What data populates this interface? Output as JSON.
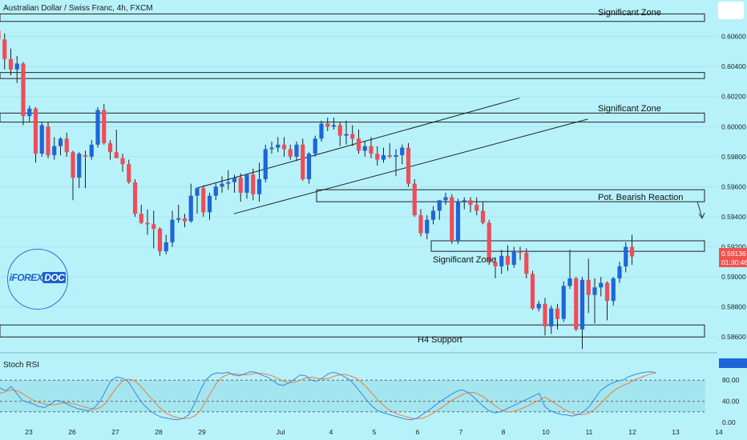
{
  "header": {
    "title": "Australian Dollar / Swiss Franc, 4h, FXCM"
  },
  "logo": {
    "prefix": "iFOREX",
    "suffix": "DOC"
  },
  "rsi": {
    "label": "Stoch RSI",
    "levels": [
      "80.00",
      "40.00",
      "0.00"
    ]
  },
  "price_badge": {
    "price": "0.59136",
    "countdown": "01:30:46",
    "color": "#ef5350"
  },
  "colors": {
    "bull": "#1e66d8",
    "bear": "#ef4d5a",
    "background": "#b7f2fb",
    "k_line": "#3a86e0",
    "d_line": "#f07b3b"
  },
  "annotations": {
    "zone1": "Significant Zone",
    "zone2": "Significant Zone",
    "zone3": "Pot. Bearish Reaction",
    "zone4": "Significant Zone",
    "zone5": "H4 Support"
  },
  "chart_data": {
    "type": "candlestick",
    "title": "Australian Dollar / Swiss Franc, 4h, FXCM",
    "ylim": [
      0.585,
      0.608
    ],
    "y_ticks": [
      "0.60600",
      "0.60400",
      "0.60200",
      "0.60000",
      "0.59800",
      "0.59600",
      "0.59400",
      "0.59200",
      "0.59000",
      "0.58800",
      "0.58600"
    ],
    "x_ticks": [
      "23",
      "26",
      "27",
      "28",
      "29",
      "Jul",
      "4",
      "5",
      "6",
      "7",
      "8",
      "10",
      "11",
      "12",
      "13",
      "14"
    ],
    "candles": [
      [
        0.6064,
        0.6067,
        0.6052,
        0.6058
      ],
      [
        0.6058,
        0.6062,
        0.6038,
        0.6045
      ],
      [
        0.6045,
        0.6052,
        0.6034,
        0.6038
      ],
      [
        0.6038,
        0.6047,
        0.6029,
        0.6042
      ],
      [
        0.6042,
        0.6043,
        0.6001,
        0.6007
      ],
      [
        0.6007,
        0.6014,
        0.6003,
        0.6012
      ],
      [
        0.6012,
        0.6013,
        0.5976,
        0.5982
      ],
      [
        0.5982,
        0.6003,
        0.598,
        0.6001
      ],
      [
        0.6,
        0.6003,
        0.5979,
        0.5981
      ],
      [
        0.5981,
        0.5993,
        0.5978,
        0.5987
      ],
      [
        0.5987,
        0.5993,
        0.5981,
        0.5992
      ],
      [
        0.5992,
        0.5996,
        0.598,
        0.5983
      ],
      [
        0.5983,
        0.5984,
        0.5951,
        0.5966
      ],
      [
        0.5966,
        0.5983,
        0.5959,
        0.5982
      ],
      [
        0.5981,
        0.5984,
        0.5959,
        0.598
      ],
      [
        0.598,
        0.5991,
        0.5978,
        0.5988
      ],
      [
        0.5988,
        0.6013,
        0.5986,
        0.6011
      ],
      [
        0.6011,
        0.6015,
        0.5988,
        0.5989
      ],
      [
        0.5989,
        0.5991,
        0.5978,
        0.5983
      ],
      [
        0.5983,
        0.5998,
        0.5981,
        0.5979
      ],
      [
        0.5979,
        0.5982,
        0.597,
        0.5975
      ],
      [
        0.5975,
        0.5978,
        0.5962,
        0.5963
      ],
      [
        0.5963,
        0.5965,
        0.594,
        0.5942
      ],
      [
        0.5942,
        0.5948,
        0.5935,
        0.5936
      ],
      [
        0.5936,
        0.5945,
        0.5928,
        0.5935
      ],
      [
        0.5935,
        0.5944,
        0.5919,
        0.5932
      ],
      [
        0.5932,
        0.5933,
        0.5914,
        0.5917
      ],
      [
        0.5917,
        0.5928,
        0.5915,
        0.5923
      ],
      [
        0.5923,
        0.5944,
        0.592,
        0.5938
      ],
      [
        0.5938,
        0.5948,
        0.5936,
        0.5939
      ],
      [
        0.5939,
        0.5942,
        0.5933,
        0.5937
      ],
      [
        0.5937,
        0.5962,
        0.5936,
        0.5954
      ],
      [
        0.5954,
        0.5958,
        0.5942,
        0.5959
      ],
      [
        0.5959,
        0.5961,
        0.594,
        0.5943
      ],
      [
        0.5943,
        0.5956,
        0.5938,
        0.5954
      ],
      [
        0.5954,
        0.5962,
        0.5951,
        0.596
      ],
      [
        0.596,
        0.5967,
        0.5956,
        0.5962
      ],
      [
        0.5962,
        0.5971,
        0.5958,
        0.5963
      ],
      [
        0.5963,
        0.5968,
        0.5956,
        0.5966
      ],
      [
        0.5966,
        0.5969,
        0.595,
        0.5956
      ],
      [
        0.5956,
        0.5966,
        0.5952,
        0.5968
      ],
      [
        0.5968,
        0.5972,
        0.5951,
        0.5955
      ],
      [
        0.5955,
        0.5976,
        0.595,
        0.5965
      ],
      [
        0.5965,
        0.5988,
        0.5963,
        0.5985
      ],
      [
        0.5985,
        0.599,
        0.5982,
        0.5986
      ],
      [
        0.5986,
        0.5993,
        0.5983,
        0.5988
      ],
      [
        0.5988,
        0.5993,
        0.598,
        0.5985
      ],
      [
        0.5985,
        0.5988,
        0.5978,
        0.598
      ],
      [
        0.598,
        0.599,
        0.5977,
        0.5988
      ],
      [
        0.5988,
        0.5992,
        0.5964,
        0.5965
      ],
      [
        0.5965,
        0.5983,
        0.5962,
        0.5982
      ],
      [
        0.5982,
        0.5994,
        0.598,
        0.5992
      ],
      [
        0.5992,
        0.6004,
        0.599,
        0.6002
      ],
      [
        0.6002,
        0.6006,
        0.5997,
        0.6
      ],
      [
        0.6,
        0.6006,
        0.5998,
        0.6001
      ],
      [
        0.6001,
        0.6003,
        0.5987,
        0.5994
      ],
      [
        0.5994,
        0.6004,
        0.5988,
        0.5995
      ],
      [
        0.5995,
        0.6001,
        0.5987,
        0.5992
      ],
      [
        0.5992,
        0.5998,
        0.5982,
        0.5984
      ],
      [
        0.5984,
        0.599,
        0.598,
        0.5987
      ],
      [
        0.5987,
        0.5993,
        0.5979,
        0.5982
      ],
      [
        0.5982,
        0.5987,
        0.5974,
        0.5978
      ],
      [
        0.5978,
        0.5986,
        0.5976,
        0.5981
      ],
      [
        0.5981,
        0.5989,
        0.5979,
        0.598
      ],
      [
        0.598,
        0.5985,
        0.5967,
        0.5981
      ],
      [
        0.5981,
        0.5988,
        0.5975,
        0.5986
      ],
      [
        0.5986,
        0.5989,
        0.596,
        0.5962
      ],
      [
        0.5962,
        0.5965,
        0.594,
        0.5941
      ],
      [
        0.5941,
        0.5945,
        0.5927,
        0.5929
      ],
      [
        0.5929,
        0.5941,
        0.5925,
        0.5938
      ],
      [
        0.5938,
        0.5947,
        0.5935,
        0.5944
      ],
      [
        0.5944,
        0.5951,
        0.5938,
        0.5951
      ],
      [
        0.5951,
        0.5956,
        0.5948,
        0.5953
      ],
      [
        0.5953,
        0.5955,
        0.5922,
        0.5924
      ],
      [
        0.5924,
        0.5952,
        0.5922,
        0.595
      ],
      [
        0.595,
        0.5953,
        0.5945,
        0.5951
      ],
      [
        0.5951,
        0.5953,
        0.5943,
        0.5948
      ],
      [
        0.5948,
        0.5953,
        0.5941,
        0.5944
      ],
      [
        0.5944,
        0.595,
        0.5935,
        0.5936
      ],
      [
        0.5936,
        0.5938,
        0.5908,
        0.591
      ],
      [
        0.591,
        0.5913,
        0.5899,
        0.5907
      ],
      [
        0.5907,
        0.5918,
        0.5902,
        0.5914
      ],
      [
        0.5914,
        0.5921,
        0.5904,
        0.5908
      ],
      [
        0.5908,
        0.592,
        0.5906,
        0.5917
      ],
      [
        0.5917,
        0.592,
        0.5911,
        0.5916
      ],
      [
        0.5916,
        0.5919,
        0.5899,
        0.5902
      ],
      [
        0.5902,
        0.5904,
        0.5878,
        0.5879
      ],
      [
        0.5879,
        0.5884,
        0.5877,
        0.5882
      ],
      [
        0.5882,
        0.5886,
        0.5861,
        0.5867
      ],
      [
        0.5867,
        0.5881,
        0.5862,
        0.5879
      ],
      [
        0.5879,
        0.5882,
        0.5865,
        0.5872
      ],
      [
        0.5872,
        0.5897,
        0.587,
        0.5894
      ],
      [
        0.5894,
        0.5918,
        0.5892,
        0.5899
      ],
      [
        0.5899,
        0.59,
        0.5864,
        0.5865
      ],
      [
        0.5865,
        0.59,
        0.5852,
        0.5898
      ],
      [
        0.5898,
        0.5912,
        0.5876,
        0.5888
      ],
      [
        0.5888,
        0.5899,
        0.5869,
        0.5893
      ],
      [
        0.5893,
        0.59,
        0.5887,
        0.5896
      ],
      [
        0.5896,
        0.5897,
        0.5871,
        0.5884
      ],
      [
        0.5884,
        0.59,
        0.5881,
        0.5899
      ],
      [
        0.5899,
        0.591,
        0.5896,
        0.5907
      ],
      [
        0.5907,
        0.5923,
        0.5903,
        0.592
      ],
      [
        0.592,
        0.5928,
        0.5908,
        0.59136
      ]
    ],
    "zones": [
      {
        "label": "Significant Zone",
        "y_top": 0.6075,
        "y_bottom": 0.607
      },
      {
        "label": "",
        "y_top": 0.6036,
        "y_bottom": 0.6032
      },
      {
        "label": "Significant Zone",
        "y_top": 0.6009,
        "y_bottom": 0.6003
      },
      {
        "label": "Pot. Bearish Reaction",
        "y_top": 0.5958,
        "y_bottom": 0.595
      },
      {
        "label": "Significant Zone",
        "y_top": 0.5924,
        "y_bottom": 0.5917
      },
      {
        "label": "H4 Support",
        "y_top": 0.5868,
        "y_bottom": 0.586
      }
    ],
    "channel_lines": [
      {
        "x1": 19,
        "y1": 0.5959,
        "x2": 71,
        "y2": 0.6019
      },
      {
        "x1": 25,
        "y1": 0.5942,
        "x2": 82,
        "y2": 0.6005
      }
    ],
    "stoch_rsi": {
      "ylim": [
        0,
        100
      ],
      "levels": [
        80,
        40,
        20
      ],
      "k": [
        65,
        60,
        68,
        55,
        42,
        38,
        35,
        30,
        28,
        34,
        42,
        40,
        35,
        30,
        26,
        24,
        22,
        28,
        40,
        60,
        80,
        86,
        84,
        78,
        62,
        45,
        32,
        22,
        15,
        10,
        8,
        6,
        5,
        8,
        15,
        35,
        60,
        80,
        90,
        94,
        93,
        95,
        90,
        88,
        92,
        96,
        95,
        90,
        86,
        80,
        72,
        70,
        75,
        82,
        90,
        88,
        80,
        78,
        84,
        92,
        95,
        92,
        86,
        80,
        68,
        55,
        42,
        30,
        22,
        18,
        15,
        12,
        9,
        6,
        5,
        8,
        15,
        22,
        30,
        38,
        45,
        52,
        58,
        62,
        58,
        50,
        40,
        30,
        22,
        18,
        20,
        25,
        30,
        35,
        40,
        45,
        50,
        55,
        30,
        22,
        18,
        15,
        14,
        12,
        15,
        20,
        30,
        45,
        60,
        68,
        74,
        78,
        80,
        86,
        90,
        93,
        95,
        96,
        94
      ],
      "d": [
        55,
        58,
        62,
        60,
        55,
        48,
        42,
        38,
        35,
        33,
        34,
        36,
        38,
        36,
        33,
        30,
        27,
        25,
        28,
        36,
        52,
        66,
        78,
        82,
        80,
        72,
        60,
        48,
        36,
        25,
        17,
        12,
        9,
        7,
        8,
        12,
        22,
        40,
        58,
        75,
        86,
        91,
        92,
        91,
        90,
        91,
        93,
        93,
        91,
        88,
        83,
        78,
        75,
        76,
        80,
        84,
        86,
        84,
        82,
        83,
        87,
        90,
        91,
        88,
        84,
        76,
        66,
        54,
        42,
        32,
        24,
        18,
        14,
        11,
        8,
        7,
        8,
        12,
        18,
        25,
        32,
        40,
        46,
        52,
        56,
        57,
        54,
        48,
        40,
        32,
        25,
        20,
        20,
        23,
        27,
        32,
        37,
        42,
        48,
        42,
        35,
        28,
        22,
        17,
        15,
        15,
        18,
        25,
        35,
        46,
        56,
        64,
        70,
        74,
        80,
        84,
        88,
        92,
        94
      ]
    }
  }
}
